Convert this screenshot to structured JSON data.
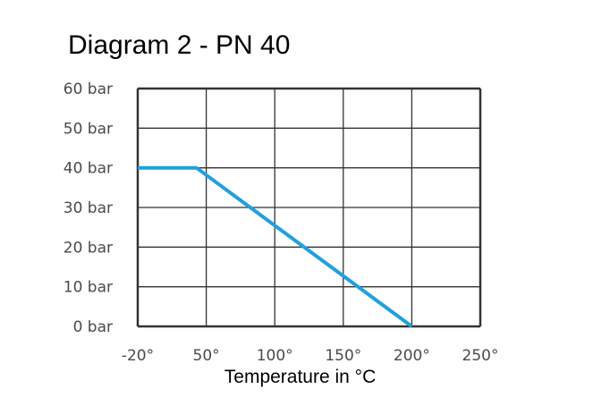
{
  "chart_data": {
    "type": "line",
    "title": "Diagram 2 - PN 40",
    "xlabel": "Temperature in °C",
    "ylabel": "",
    "x_ticks": [
      -20,
      50,
      100,
      150,
      200,
      250
    ],
    "x_tick_labels": [
      "-20°",
      "50°",
      "100°",
      "150°",
      "200°",
      "250°"
    ],
    "y_ticks": [
      0,
      10,
      20,
      30,
      40,
      50,
      60
    ],
    "y_tick_labels": [
      "0 bar",
      "10 bar",
      "20 bar",
      "30 bar",
      "40 bar",
      "50 bar",
      "60 bar"
    ],
    "xlim": [
      -20,
      250
    ],
    "ylim": [
      0,
      60
    ],
    "grid": true,
    "series": [
      {
        "x": [
          -20,
          40,
          200
        ],
        "y": [
          40,
          40,
          0
        ],
        "color": "#1fa0e0"
      }
    ]
  }
}
